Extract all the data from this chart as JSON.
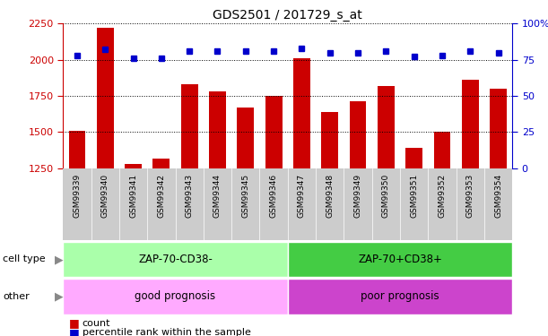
{
  "title": "GDS2501 / 201729_s_at",
  "samples": [
    "GSM99339",
    "GSM99340",
    "GSM99341",
    "GSM99342",
    "GSM99343",
    "GSM99344",
    "GSM99345",
    "GSM99346",
    "GSM99347",
    "GSM99348",
    "GSM99349",
    "GSM99350",
    "GSM99351",
    "GSM99352",
    "GSM99353",
    "GSM99354"
  ],
  "counts": [
    1510,
    2220,
    1275,
    1315,
    1830,
    1780,
    1670,
    1750,
    2010,
    1640,
    1710,
    1820,
    1390,
    1500,
    1860,
    1800
  ],
  "percentile_ranks": [
    78,
    82,
    76,
    76,
    81,
    81,
    81,
    81,
    83,
    80,
    80,
    81,
    77,
    78,
    81,
    80
  ],
  "ylim_left": [
    1250,
    2250
  ],
  "ylim_right": [
    0,
    100
  ],
  "yticks_left": [
    1250,
    1500,
    1750,
    2000,
    2250
  ],
  "yticks_right": [
    0,
    25,
    50,
    75,
    100
  ],
  "ytick_labels_right": [
    "0",
    "25",
    "50",
    "75",
    "100%"
  ],
  "bar_color": "#cc0000",
  "dot_color": "#0000cc",
  "cell_type_left": "ZAP-70-CD38-",
  "cell_type_right": "ZAP-70+CD38+",
  "other_left": "good prognosis",
  "other_right": "poor prognosis",
  "cell_type_split": 8,
  "bg_color_left_cell": "#aaffaa",
  "bg_color_right_cell": "#44cc44",
  "bg_color_left_other": "#ffaaff",
  "bg_color_right_other": "#cc44cc",
  "legend_count_label": "count",
  "legend_pct_label": "percentile rank within the sample",
  "axis_color_left": "#cc0000",
  "axis_color_right": "#0000cc",
  "tick_bg_color": "#cccccc",
  "arrow_color": "#888888",
  "label_color_cell_other": "#555555"
}
